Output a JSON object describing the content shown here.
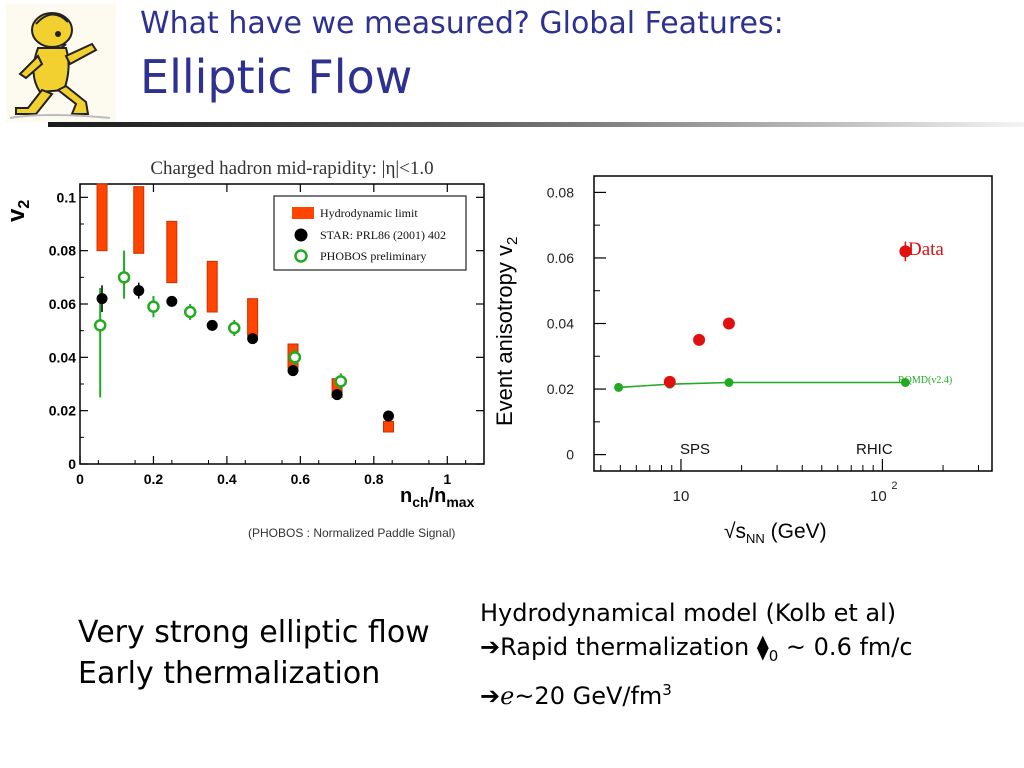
{
  "slide": {
    "title_line1": "What have we measured? Global Features:",
    "title_line2": "Elliptic Flow",
    "accent_color": "#2e3192",
    "mascot_icon": "walking-cartoon-character-icon"
  },
  "left_text": {
    "line1": "Very strong elliptic flow",
    "line2": "Early thermalization"
  },
  "right_text": {
    "line1": "Hydrodynamical model (Kolb et al)",
    "line2_arrow": "➔",
    "line2_text": "Rapid thermalization ",
    "line2_symbol": "⧫",
    "line2_sub": "0",
    "line2_rest": " ~ 0.6 fm/c",
    "line3_arrow": "➔",
    "line3_symbol": "ℯ",
    "line3_text": "~20 GeV/fm",
    "line3_sup": "3"
  },
  "chart_data": [
    {
      "type": "scatter",
      "title": "Charged hadron   mid-rapidity: |η|<1.0",
      "subtitle": "(PHOBOS : Normalized Paddle Signal)",
      "xlabel": "n",
      "xlabel_sub1": "ch",
      "xlabel_mid": "/n",
      "xlabel_sub2": "max",
      "ylabel": "v",
      "ylabel_sub": "2",
      "xlim": [
        0,
        1.1
      ],
      "ylim": [
        0,
        0.105
      ],
      "xticks": [
        0,
        0.2,
        0.4,
        0.6,
        0.8,
        1
      ],
      "xtick_labels": [
        "0",
        "0.2",
        "0.4",
        "0.6",
        "0.8",
        "1"
      ],
      "yticks": [
        0,
        0.02,
        0.04,
        0.06,
        0.08,
        0.1
      ],
      "ytick_labels": [
        "0",
        "0.02",
        "0.04",
        "0.06",
        "0.08",
        "0.1"
      ],
      "legend_position": "top-right",
      "legend": [
        "Hydrodynamic limit",
        "STAR: PRL86 (2001) 402",
        "PHOBOS preliminary"
      ],
      "colors": {
        "hydro": "#ff4500",
        "star": "#000000",
        "phobos": "#22aa22"
      },
      "hydro_band": [
        {
          "x": 0.06,
          "low": 0.08,
          "high": 0.106
        },
        {
          "x": 0.16,
          "low": 0.079,
          "high": 0.104
        },
        {
          "x": 0.25,
          "low": 0.068,
          "high": 0.091
        },
        {
          "x": 0.36,
          "low": 0.057,
          "high": 0.076
        },
        {
          "x": 0.47,
          "low": 0.048,
          "high": 0.062
        },
        {
          "x": 0.58,
          "low": 0.036,
          "high": 0.045
        },
        {
          "x": 0.7,
          "low": 0.025,
          "high": 0.032
        },
        {
          "x": 0.84,
          "low": 0.012,
          "high": 0.016
        }
      ],
      "star": [
        {
          "x": 0.06,
          "y": 0.062,
          "err": 0.005
        },
        {
          "x": 0.16,
          "y": 0.065,
          "err": 0.003
        },
        {
          "x": 0.25,
          "y": 0.061,
          "err": 0.002
        },
        {
          "x": 0.36,
          "y": 0.052,
          "err": 0.002
        },
        {
          "x": 0.47,
          "y": 0.047,
          "err": 0.002
        },
        {
          "x": 0.58,
          "y": 0.035,
          "err": 0.002
        },
        {
          "x": 0.7,
          "y": 0.026,
          "err": 0.002
        },
        {
          "x": 0.84,
          "y": 0.018,
          "err": 0.002
        }
      ],
      "phobos": [
        {
          "x": 0.055,
          "y": 0.052,
          "lo": 0.025,
          "hi": 0.066
        },
        {
          "x": 0.12,
          "y": 0.07,
          "lo": 0.062,
          "hi": 0.08
        },
        {
          "x": 0.2,
          "y": 0.059,
          "lo": 0.055,
          "hi": 0.063
        },
        {
          "x": 0.3,
          "y": 0.057,
          "lo": 0.054,
          "hi": 0.06
        },
        {
          "x": 0.42,
          "y": 0.051,
          "lo": 0.048,
          "hi": 0.054
        },
        {
          "x": 0.585,
          "y": 0.04,
          "lo": 0.037,
          "hi": 0.043
        },
        {
          "x": 0.71,
          "y": 0.031,
          "lo": 0.028,
          "hi": 0.034
        }
      ]
    },
    {
      "type": "scatter",
      "xlabel": "√s",
      "xlabel_sub": "NN",
      "xlabel_unit": " (GeV)",
      "ylabel": "Event anisotropy v",
      "ylabel_sub": "2",
      "xscale": "log",
      "xlim": [
        3.7,
        350
      ],
      "ylim": [
        -0.005,
        0.085
      ],
      "xticks": [
        10,
        100
      ],
      "xtick_label_10": "10",
      "xtick_label_100_base": "10",
      "xtick_label_100_exp": "2",
      "yticks": [
        0,
        0.02,
        0.04,
        0.06,
        0.08
      ],
      "ytick_labels": [
        "0",
        "0.02",
        "0.04",
        "0.06",
        "0.08"
      ],
      "annotations": {
        "sps": "SPS",
        "rhic": "RHIC",
        "data_label": "Data",
        "rqmd_label": "RQMD(v2.4)"
      },
      "colors": {
        "data": "#e01010",
        "rqmd": "#22aa22"
      },
      "data_points": [
        {
          "x": 8.8,
          "y": 0.0222
        },
        {
          "x": 12.3,
          "y": 0.035
        },
        {
          "x": 17.3,
          "y": 0.04
        },
        {
          "x": 130,
          "y": 0.062,
          "err": 0.003
        }
      ],
      "rqmd_points": [
        {
          "x": 4.9,
          "y": 0.0205
        },
        {
          "x": 8.8,
          "y": 0.0215
        },
        {
          "x": 17.3,
          "y": 0.022
        },
        {
          "x": 130,
          "y": 0.022
        }
      ]
    }
  ]
}
